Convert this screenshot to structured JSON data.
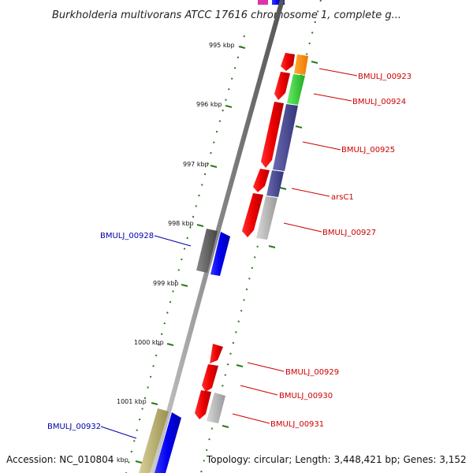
{
  "title": "Burkholderia multivorans ATCC 17616 chromosome 1, complete g...",
  "footer": {
    "accession": "Accession: NC_010804",
    "topology": "Topology: circular; Length: 3,448,421 bp; Genes: 3,152"
  },
  "tick_labels": [
    "995 kbp",
    "996 kbp",
    "997 kbp",
    "998 kbp",
    "999 kbp",
    "1000 kbp",
    "1001 kbp",
    "kbp"
  ],
  "gene_labels": {
    "g00923": "BMULJ_00923",
    "g00924": "BMULJ_00924",
    "g00925": "BMULJ_00925",
    "arsC1": "arsC1",
    "g00927": "BMULJ_00927",
    "g00928": "BMULJ_00928",
    "g00929": "BMULJ_00929",
    "g00930": "BMULJ_00930",
    "g00931": "BMULJ_00931",
    "g00932": "BMULJ_00932"
  },
  "colors": {
    "backbone": "#999999",
    "tick": "#2a7a1a",
    "label_red": "#cc0000",
    "label_blue": "#0000aa"
  }
}
